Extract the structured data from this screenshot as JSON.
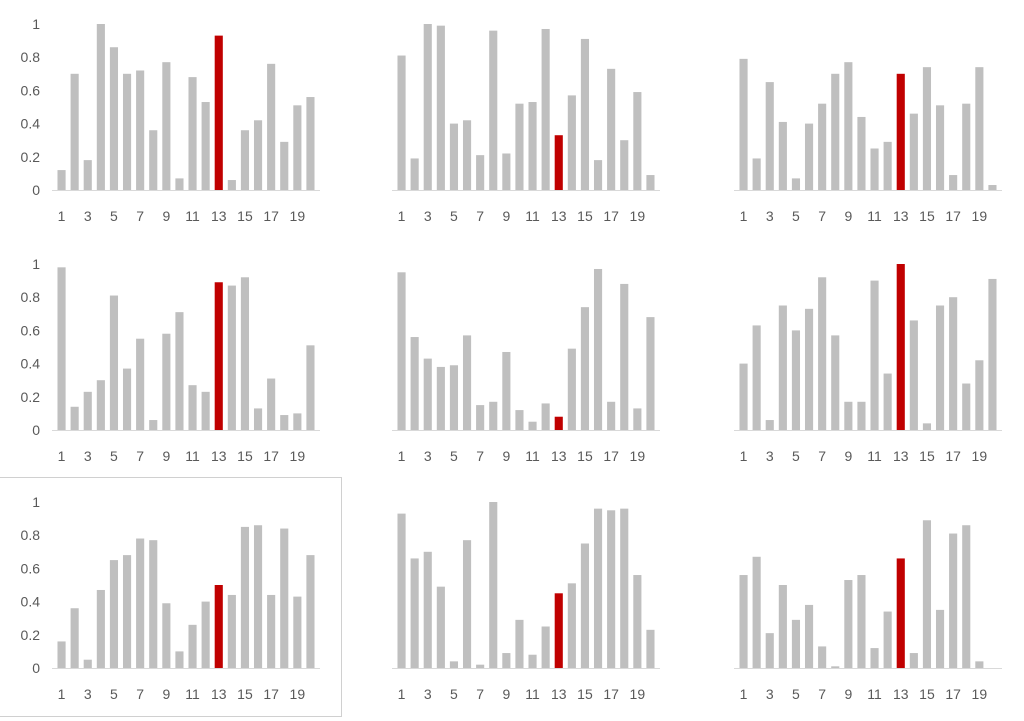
{
  "colors": {
    "bar": "#bfbfbf",
    "highlight": "#c00000",
    "axis": "#d9d9d9",
    "text": "#595959",
    "frame": "#d0d0d0"
  },
  "chart_data": [
    {
      "type": "bar",
      "title": "",
      "xlabel": "",
      "ylabel": "",
      "ylim": [
        0,
        1
      ],
      "y_ticks": [
        "0",
        "0.2",
        "0.4",
        "0.6",
        "0.8",
        "1"
      ],
      "x_tick_labels": [
        "1",
        "3",
        "5",
        "7",
        "9",
        "11",
        "13",
        "15",
        "17",
        "19"
      ],
      "categories": [
        1,
        2,
        3,
        4,
        5,
        6,
        7,
        8,
        9,
        10,
        11,
        12,
        13,
        14,
        15,
        16,
        17,
        18,
        19,
        20
      ],
      "highlight_category": 13,
      "grid": false,
      "show_y_axis_labels": true,
      "selected": false,
      "values": [
        0.12,
        0.7,
        0.18,
        1.0,
        0.86,
        0.7,
        0.72,
        0.36,
        0.77,
        0.07,
        0.68,
        0.53,
        0.93,
        0.06,
        0.36,
        0.42,
        0.76,
        0.29,
        0.51,
        0.56
      ]
    },
    {
      "type": "bar",
      "title": "",
      "xlabel": "",
      "ylabel": "",
      "ylim": [
        0,
        1
      ],
      "y_ticks": [
        "0",
        "0.2",
        "0.4",
        "0.6",
        "0.8",
        "1"
      ],
      "x_tick_labels": [
        "1",
        "3",
        "5",
        "7",
        "9",
        "11",
        "13",
        "15",
        "17",
        "19"
      ],
      "categories": [
        1,
        2,
        3,
        4,
        5,
        6,
        7,
        8,
        9,
        10,
        11,
        12,
        13,
        14,
        15,
        16,
        17,
        18,
        19,
        20
      ],
      "highlight_category": 13,
      "grid": false,
      "show_y_axis_labels": false,
      "selected": false,
      "values": [
        0.81,
        0.19,
        1.0,
        0.99,
        0.4,
        0.42,
        0.21,
        0.96,
        0.22,
        0.52,
        0.53,
        0.97,
        0.33,
        0.57,
        0.91,
        0.18,
        0.73,
        0.3,
        0.59,
        0.09
      ]
    },
    {
      "type": "bar",
      "title": "",
      "xlabel": "",
      "ylabel": "",
      "ylim": [
        0,
        1
      ],
      "y_ticks": [
        "0",
        "0.2",
        "0.4",
        "0.6",
        "0.8",
        "1"
      ],
      "x_tick_labels": [
        "1",
        "3",
        "5",
        "7",
        "9",
        "11",
        "13",
        "15",
        "17",
        "19"
      ],
      "categories": [
        1,
        2,
        3,
        4,
        5,
        6,
        7,
        8,
        9,
        10,
        11,
        12,
        13,
        14,
        15,
        16,
        17,
        18,
        19,
        20
      ],
      "highlight_category": 13,
      "grid": false,
      "show_y_axis_labels": false,
      "selected": false,
      "values": [
        0.79,
        0.19,
        0.65,
        0.41,
        0.07,
        0.4,
        0.52,
        0.7,
        0.77,
        0.44,
        0.25,
        0.29,
        0.7,
        0.46,
        0.74,
        0.51,
        0.09,
        0.52,
        0.74,
        0.03
      ]
    },
    {
      "type": "bar",
      "title": "",
      "xlabel": "",
      "ylabel": "",
      "ylim": [
        0,
        1
      ],
      "y_ticks": [
        "0",
        "0.2",
        "0.4",
        "0.6",
        "0.8",
        "1"
      ],
      "x_tick_labels": [
        "1",
        "3",
        "5",
        "7",
        "9",
        "11",
        "13",
        "15",
        "17",
        "19"
      ],
      "categories": [
        1,
        2,
        3,
        4,
        5,
        6,
        7,
        8,
        9,
        10,
        11,
        12,
        13,
        14,
        15,
        16,
        17,
        18,
        19,
        20
      ],
      "highlight_category": 13,
      "grid": false,
      "show_y_axis_labels": true,
      "selected": false,
      "values": [
        0.98,
        0.14,
        0.23,
        0.3,
        0.81,
        0.37,
        0.55,
        0.06,
        0.58,
        0.71,
        0.27,
        0.23,
        0.89,
        0.87,
        0.92,
        0.13,
        0.31,
        0.09,
        0.1,
        0.51
      ]
    },
    {
      "type": "bar",
      "title": "",
      "xlabel": "",
      "ylabel": "",
      "ylim": [
        0,
        1
      ],
      "y_ticks": [
        "0",
        "0.2",
        "0.4",
        "0.6",
        "0.8",
        "1"
      ],
      "x_tick_labels": [
        "1",
        "3",
        "5",
        "7",
        "9",
        "11",
        "13",
        "15",
        "17",
        "19"
      ],
      "categories": [
        1,
        2,
        3,
        4,
        5,
        6,
        7,
        8,
        9,
        10,
        11,
        12,
        13,
        14,
        15,
        16,
        17,
        18,
        19,
        20
      ],
      "highlight_category": 13,
      "grid": false,
      "show_y_axis_labels": false,
      "selected": false,
      "values": [
        0.95,
        0.56,
        0.43,
        0.38,
        0.39,
        0.57,
        0.15,
        0.17,
        0.47,
        0.12,
        0.05,
        0.16,
        0.08,
        0.49,
        0.74,
        0.97,
        0.17,
        0.88,
        0.13,
        0.68
      ]
    },
    {
      "type": "bar",
      "title": "",
      "xlabel": "",
      "ylabel": "",
      "ylim": [
        0,
        1
      ],
      "y_ticks": [
        "0",
        "0.2",
        "0.4",
        "0.6",
        "0.8",
        "1"
      ],
      "x_tick_labels": [
        "1",
        "3",
        "5",
        "7",
        "9",
        "11",
        "13",
        "15",
        "17",
        "19"
      ],
      "categories": [
        1,
        2,
        3,
        4,
        5,
        6,
        7,
        8,
        9,
        10,
        11,
        12,
        13,
        14,
        15,
        16,
        17,
        18,
        19,
        20
      ],
      "highlight_category": 13,
      "grid": false,
      "show_y_axis_labels": false,
      "selected": false,
      "values": [
        0.4,
        0.63,
        0.06,
        0.75,
        0.6,
        0.73,
        0.92,
        0.57,
        0.17,
        0.17,
        0.9,
        0.34,
        1.0,
        0.66,
        0.04,
        0.75,
        0.8,
        0.28,
        0.42,
        0.91
      ]
    },
    {
      "type": "bar",
      "title": "",
      "xlabel": "",
      "ylabel": "",
      "ylim": [
        0,
        1
      ],
      "y_ticks": [
        "0",
        "0.2",
        "0.4",
        "0.6",
        "0.8",
        "1"
      ],
      "x_tick_labels": [
        "1",
        "3",
        "5",
        "7",
        "9",
        "11",
        "13",
        "15",
        "17",
        "19"
      ],
      "categories": [
        1,
        2,
        3,
        4,
        5,
        6,
        7,
        8,
        9,
        10,
        11,
        12,
        13,
        14,
        15,
        16,
        17,
        18,
        19,
        20
      ],
      "highlight_category": 13,
      "grid": false,
      "show_y_axis_labels": true,
      "selected": true,
      "values": [
        0.16,
        0.36,
        0.05,
        0.47,
        0.65,
        0.68,
        0.78,
        0.77,
        0.39,
        0.1,
        0.26,
        0.4,
        0.5,
        0.44,
        0.85,
        0.86,
        0.44,
        0.84,
        0.43,
        0.68
      ]
    },
    {
      "type": "bar",
      "title": "",
      "xlabel": "",
      "ylabel": "",
      "ylim": [
        0,
        1
      ],
      "y_ticks": [
        "0",
        "0.2",
        "0.4",
        "0.6",
        "0.8",
        "1"
      ],
      "x_tick_labels": [
        "1",
        "3",
        "5",
        "7",
        "9",
        "11",
        "13",
        "15",
        "17",
        "19"
      ],
      "categories": [
        1,
        2,
        3,
        4,
        5,
        6,
        7,
        8,
        9,
        10,
        11,
        12,
        13,
        14,
        15,
        16,
        17,
        18,
        19,
        20
      ],
      "highlight_category": 13,
      "grid": false,
      "show_y_axis_labels": false,
      "selected": false,
      "values": [
        0.93,
        0.66,
        0.7,
        0.49,
        0.04,
        0.77,
        0.02,
        1.0,
        0.09,
        0.29,
        0.08,
        0.25,
        0.45,
        0.51,
        0.75,
        0.96,
        0.95,
        0.96,
        0.56,
        0.23
      ]
    },
    {
      "type": "bar",
      "title": "",
      "xlabel": "",
      "ylabel": "",
      "ylim": [
        0,
        1
      ],
      "y_ticks": [
        "0",
        "0.2",
        "0.4",
        "0.6",
        "0.8",
        "1"
      ],
      "x_tick_labels": [
        "1",
        "3",
        "5",
        "7",
        "9",
        "11",
        "13",
        "15",
        "17",
        "19"
      ],
      "categories": [
        1,
        2,
        3,
        4,
        5,
        6,
        7,
        8,
        9,
        10,
        11,
        12,
        13,
        14,
        15,
        16,
        17,
        18,
        19,
        20
      ],
      "highlight_category": 13,
      "grid": false,
      "show_y_axis_labels": false,
      "selected": false,
      "values": [
        0.56,
        0.67,
        0.21,
        0.5,
        0.29,
        0.38,
        0.13,
        0.01,
        0.53,
        0.56,
        0.12,
        0.34,
        0.66,
        0.09,
        0.89,
        0.35,
        0.81,
        0.86,
        0.04,
        0.0
      ]
    }
  ]
}
